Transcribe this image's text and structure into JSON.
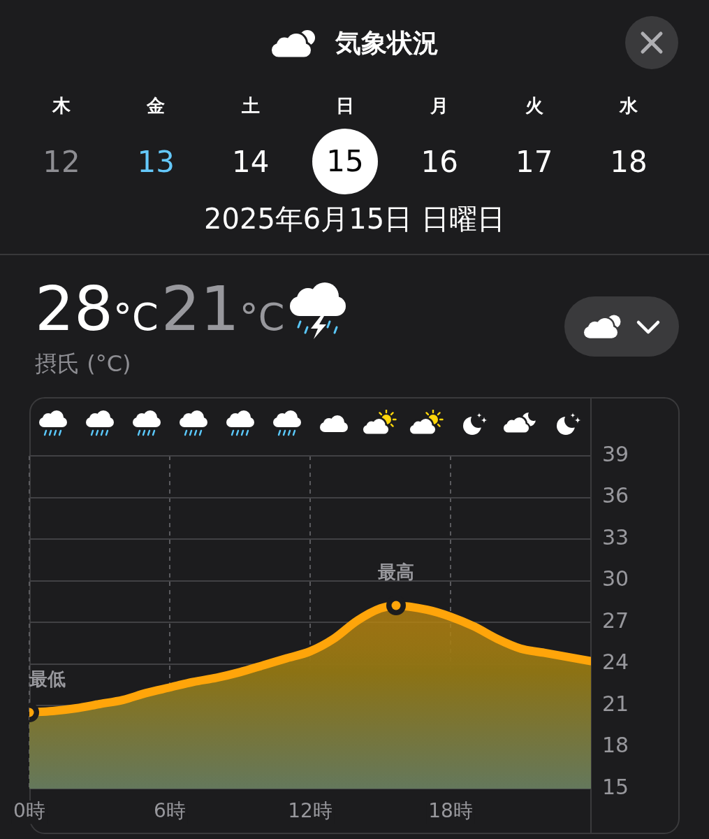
{
  "chart_data": {
    "type": "area",
    "title": "気象状況",
    "subtitle": "2025年6月15日 日曜日",
    "x": [
      0,
      1,
      2,
      3,
      4,
      5,
      6,
      7,
      8,
      9,
      10,
      11,
      12,
      13,
      14,
      15,
      15.67,
      17,
      18,
      19,
      20,
      21,
      22,
      23,
      24
    ],
    "series": [
      {
        "color": "#ffa50a",
        "values": [
          20.5,
          20.6,
          20.8,
          21.1,
          21.4,
          21.9,
          22.3,
          22.7,
          23.0,
          23.4,
          23.9,
          24.4,
          24.9,
          25.8,
          27.1,
          28.0,
          28.2,
          27.9,
          27.4,
          26.7,
          25.8,
          25.1,
          24.8,
          24.5,
          24.2
        ]
      }
    ],
    "xlim": [
      0,
      24
    ],
    "xticks": [
      {
        "value": 0,
        "label": "0時"
      },
      {
        "value": 6,
        "label": "6時"
      },
      {
        "value": 12,
        "label": "12時"
      },
      {
        "value": 18,
        "label": "18時"
      }
    ],
    "ylim": [
      15,
      39
    ],
    "yticks": [
      15,
      18,
      21,
      24,
      27,
      30,
      33,
      36,
      39
    ],
    "grid": true,
    "annotations": [
      {
        "text": "最低",
        "x": 0,
        "y": 20.5
      },
      {
        "text": "最高",
        "x": 15.67,
        "y": 28.2
      },
      "木",
      "金",
      "土",
      "日",
      "月",
      "火",
      "水",
      "12",
      "13",
      "14",
      "15",
      "16",
      "17",
      "18",
      "28°C",
      "21°C",
      "摂氏 (°C)"
    ]
  }
}
